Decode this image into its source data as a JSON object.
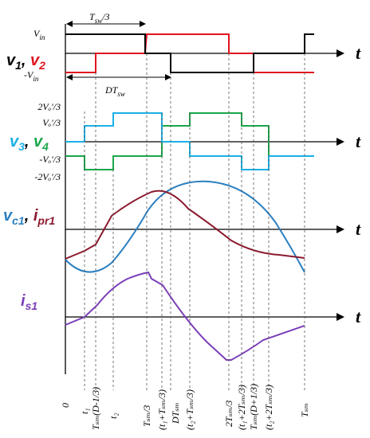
{
  "palette": {
    "v1": "#000000",
    "v2": "#e0141e",
    "v3": "#1ab0e6",
    "v4": "#1aa64a",
    "vc1": "#2a7fc0",
    "ipr1": "#8b1a2e",
    "is1": "#7b3fb8",
    "axis": "#000000"
  },
  "panel1": {
    "symbols": [
      {
        "text": "v",
        "sub": "1",
        "color": "#000000",
        "sep": ", "
      },
      {
        "text": "v",
        "sub": "2",
        "color": "#e0141e",
        "sep": ""
      }
    ],
    "levels": [
      {
        "text": "V",
        "sub": "in"
      },
      {
        "text": "-V",
        "sub": "in"
      }
    ],
    "dim_top": {
      "text": "T",
      "sub": "sw",
      "after": "/3"
    },
    "dim_bottom": {
      "text": "DT",
      "sub": "sw",
      "after": ""
    },
    "axis_label": "t"
  },
  "panel2": {
    "symbols": [
      {
        "text": "v",
        "sub": "3",
        "color": "#1ab0e6",
        "sep": ", "
      },
      {
        "text": "v",
        "sub": "4",
        "color": "#1aa64a",
        "sep": ""
      }
    ],
    "levels": [
      "2Vₒ'/3",
      "Vₒ'/3",
      "-Vₒ'/3",
      "-2Vₒ'/3"
    ],
    "axis_label": "t"
  },
  "panel3": {
    "symbols": [
      {
        "text": "v",
        "sub": "c1",
        "color": "#2a7fc0",
        "sep": ", "
      },
      {
        "text": "i",
        "sub": "pr1",
        "color": "#8b1a2e",
        "sep": ""
      }
    ],
    "axis_label": "t"
  },
  "panel4": {
    "symbols": [
      {
        "text": "i",
        "sub": "s1",
        "color": "#7b3fb8",
        "sep": ""
      }
    ],
    "axis_label": "t"
  },
  "time_ticks": [
    "0",
    "t₁",
    "Tₛₘ(D-1/3)",
    "t₂",
    "Tₛₘ/3",
    "(t₁+Tₛₘ/3)",
    "DTₛₘ",
    "(t₂+Tₛₘ/3)",
    "2Tₛₘ/3",
    "(t₁+2Tₛₘ/3)",
    "Tₛₘ(D+1/3)",
    "(t₂+2Tₛₘ/3)",
    "Tₛₘ"
  ]
}
